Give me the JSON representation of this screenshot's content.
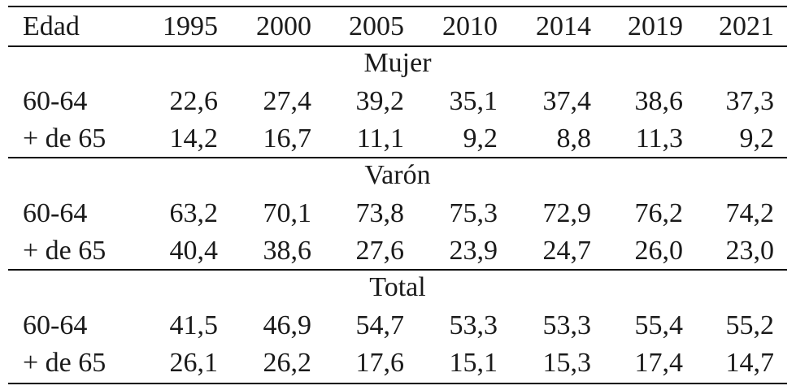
{
  "table": {
    "header": [
      "Edad",
      "1995",
      "2000",
      "2005",
      "2010",
      "2014",
      "2019",
      "2021"
    ],
    "groups": [
      {
        "label": "Mujer",
        "rows": [
          [
            "60-64",
            "22,6",
            "27,4",
            "39,2",
            "35,1",
            "37,4",
            "38,6",
            "37,3"
          ],
          [
            "+ de 65",
            "14,2",
            "16,7",
            "11,1",
            "9,2",
            "8,8",
            "11,3",
            "9,2"
          ]
        ]
      },
      {
        "label": "Varón",
        "rows": [
          [
            "60-64",
            "63,2",
            "70,1",
            "73,8",
            "75,3",
            "72,9",
            "76,2",
            "74,2"
          ],
          [
            "+ de 65",
            "40,4",
            "38,6",
            "27,6",
            "23,9",
            "24,7",
            "26,0",
            "23,0"
          ]
        ]
      },
      {
        "label": "Total",
        "rows": [
          [
            "60-64",
            "41,5",
            "46,9",
            "54,7",
            "53,3",
            "53,3",
            "55,4",
            "55,2"
          ],
          [
            "+ de 65",
            "26,1",
            "26,2",
            "17,6",
            "15,1",
            "15,3",
            "17,4",
            "14,7"
          ]
        ]
      }
    ]
  }
}
